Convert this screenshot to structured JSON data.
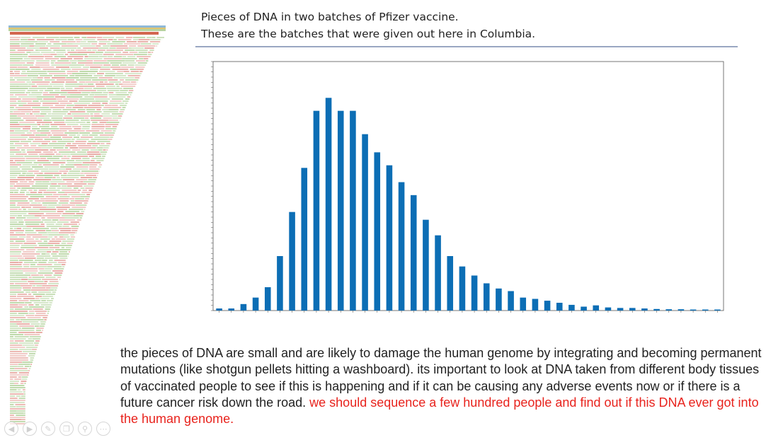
{
  "slide": {
    "title_lines": [
      "Pieces of DNA in two batches of Pfizer vaccine.",
      "These are the batches that were given out here in Columbia."
    ],
    "body_text": "the pieces of DNA are small and are likely to damage the human genome by integrating and becoming permanent mutations (like shotgun pellets hitting a washboard).  its important to look at DNA taken from different body tissues of vaccinated people to see if this is happening and if it can be causing any adverse events now or if there is a future cancer risk down the road.",
    "body_text_red": "we should sequence a few hundred people and find out if this DNA ever got into the human genome."
  },
  "colors": {
    "bar": "#0c6eb5",
    "body_red": "#e8231d",
    "alignment_green": "#b9d6a4",
    "alignment_red": "#e7a7a0"
  },
  "toolbar": {
    "icons": [
      "arrow-left-icon",
      "arrow-right-icon",
      "pen-icon",
      "copy-icon",
      "zoom-icon",
      "more-icon"
    ]
  },
  "chart_data": {
    "type": "bar",
    "values": [
      0.08,
      0.08,
      0.25,
      0.5,
      0.9,
      2.1,
      3.8,
      5.5,
      7.7,
      8.2,
      7.7,
      7.7,
      6.8,
      6.1,
      5.6,
      4.95,
      4.45,
      3.5,
      2.9,
      2.1,
      1.7,
      1.35,
      1.05,
      0.85,
      0.75,
      0.5,
      0.45,
      0.38,
      0.3,
      0.22,
      0.15,
      0.2,
      0.12,
      0.1,
      0.1,
      0.08,
      0.06,
      0.05,
      0.05,
      0.04,
      0.04,
      0.04
    ],
    "ylim": [
      0,
      9.6
    ],
    "grid": false
  }
}
